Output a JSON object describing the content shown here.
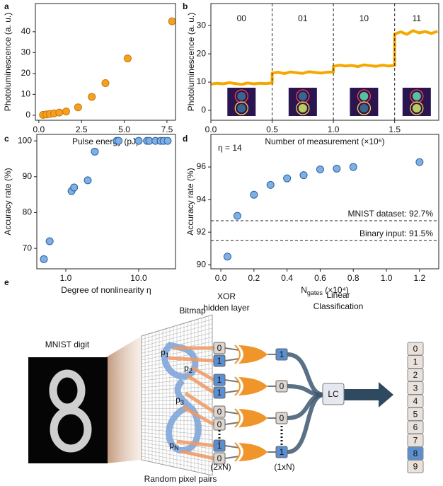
{
  "panel_labels": [
    "a",
    "b",
    "c",
    "d",
    "e"
  ],
  "chart_data": [
    {
      "type": "scatter",
      "x_label": "Pulse energy (pJ)",
      "y_label": "Photoluminescence (a. u.)",
      "x": [
        0.25,
        0.45,
        0.65,
        0.9,
        1.2,
        1.6,
        2.3,
        3.1,
        3.9,
        5.2,
        7.8
      ],
      "values": [
        0.2,
        0.4,
        0.6,
        0.9,
        1.3,
        1.8,
        3.8,
        8.8,
        15.4,
        27.2,
        45
      ],
      "color": "#f5a11f",
      "edgecolor": "#c9780a",
      "xlim": [
        -0.2,
        8.0
      ],
      "xticks": [
        {
          "value": 0,
          "label": "0.0"
        },
        {
          "value": 2.5,
          "label": "2.5"
        },
        {
          "value": 5,
          "label": "5.0"
        },
        {
          "value": 7.5,
          "label": "7.5"
        }
      ],
      "ylim": [
        -2.4,
        53.5
      ],
      "yticks": [
        0,
        10,
        20,
        30,
        40
      ]
    },
    {
      "type": "line",
      "x_label": "Number of measurement (×10⁶)",
      "y_label": "Photoluminescence (a. u.)",
      "x": [
        0,
        0.05,
        0.1,
        0.15,
        0.2,
        0.25,
        0.3,
        0.35,
        0.4,
        0.45,
        0.5,
        0.5,
        0.55,
        0.6,
        0.65,
        0.7,
        0.75,
        0.8,
        0.85,
        0.9,
        0.95,
        1.0,
        1.0,
        1.05,
        1.1,
        1.15,
        1.2,
        1.25,
        1.3,
        1.35,
        1.4,
        1.45,
        1.5,
        1.5,
        1.55,
        1.6,
        1.65,
        1.7,
        1.75,
        1.8,
        1.85
      ],
      "values": [
        9.3,
        9.6,
        9.4,
        9.8,
        9.5,
        9.2,
        9.7,
        9.4,
        9.6,
        9.5,
        9.7,
        13.2,
        13.5,
        13.0,
        13.6,
        13.3,
        13.1,
        13.7,
        13.4,
        13.2,
        13.5,
        13.6,
        15.6,
        16.0,
        15.7,
        15.9,
        15.5,
        16.1,
        15.8,
        15.6,
        16.0,
        15.7,
        15.9,
        27.0,
        27.8,
        26.9,
        28.2,
        27.4,
        27.9,
        27.2,
        28.0
      ],
      "color": "#f5a800",
      "segment_labels": [
        "00",
        "01",
        "10",
        "11"
      ],
      "dividers": [
        0.5,
        1.0,
        1.5
      ],
      "xlim": [
        0,
        1.86
      ],
      "xticks": [
        {
          "value": 0,
          "label": "0.0"
        },
        {
          "value": 0.5,
          "label": "0.5"
        },
        {
          "value": 1,
          "label": "1.0"
        },
        {
          "value": 1.5,
          "label": "1.5"
        }
      ],
      "ylim": [
        -3.5,
        37.8
      ],
      "yticks": [
        0,
        10,
        20,
        30
      ]
    },
    {
      "type": "scatter",
      "x_label": "Degree of nonlinearity η",
      "y_label": "Accuracy rate (%)",
      "xscale": "log",
      "x": [
        0.5,
        0.6,
        1.2,
        1.3,
        2.0,
        2.5,
        5.0,
        5.3,
        10,
        13,
        14,
        17,
        20,
        22,
        25
      ],
      "values": [
        67,
        72,
        86,
        87,
        89,
        97,
        100,
        100,
        100,
        100,
        100,
        100,
        100,
        100,
        100
      ],
      "color": "#7fb0e4",
      "edgecolor": "#2c5f9e",
      "xlim": [
        0.4,
        32
      ],
      "xticks": [
        {
          "value": 1,
          "label": "1.0"
        },
        {
          "value": 10,
          "label": "10.0"
        }
      ],
      "ylim": [
        64.3,
        101.8
      ],
      "yticks": [
        70,
        80,
        90,
        100
      ]
    },
    {
      "type": "scatter",
      "x_label": "N",
      "x_label_sub": "gates",
      "x_label_suffix": " (×10⁴)",
      "y_label": "Accuracy rate (%)",
      "annotation": "η = 14",
      "x": [
        0.04,
        0.1,
        0.2,
        0.3,
        0.4,
        0.5,
        0.6,
        0.7,
        0.8,
        1.2
      ],
      "values": [
        90.5,
        93.0,
        94.3,
        94.9,
        95.3,
        95.5,
        95.85,
        95.9,
        96.0,
        96.3
      ],
      "color": "#7fb0e4",
      "edgecolor": "#2c5f9e",
      "hlines": [
        {
          "value": 92.7,
          "label": "MNIST dataset: 92.7%"
        },
        {
          "value": 91.5,
          "label": "Binary input: 91.5%"
        }
      ],
      "xlim": [
        -0.06,
        1.316
      ],
      "xticks": [
        {
          "value": 0,
          "label": "0.0"
        },
        {
          "value": 0.2,
          "label": "0.2"
        },
        {
          "value": 0.4,
          "label": "0.4"
        },
        {
          "value": 0.6,
          "label": "0.6"
        },
        {
          "value": 0.8,
          "label": "0.8"
        },
        {
          "value": 1,
          "label": "1.0"
        },
        {
          "value": 1.2,
          "label": "1.2"
        }
      ],
      "ylim": [
        89.75,
        98
      ],
      "yticks": [
        90,
        92,
        94,
        96
      ]
    }
  ],
  "diagram": {
    "digit_label": "MNIST digit",
    "bitmap_label": "Bitmap",
    "hidden_label": [
      "XOR",
      "hidden layer"
    ],
    "classifier_label": [
      "Linear",
      "Classification"
    ],
    "pairs_label": "Random pixel pairs",
    "input_size": "(2xN)",
    "hidden_size": "(1xN)",
    "classifier": "LC",
    "pixel_pairs": [
      {
        "base": "p",
        "sub": "1"
      },
      {
        "base": "p",
        "sub": "2"
      },
      {
        "base": "p",
        "sub": "3"
      },
      {
        "base": "p",
        "sub": "N"
      }
    ],
    "inputs": [
      [
        "0",
        "1"
      ],
      [
        "1",
        "1"
      ],
      [
        "0",
        "0"
      ],
      [
        "1",
        "0"
      ]
    ],
    "hidden": [
      "1",
      "0",
      "0",
      "1"
    ],
    "outputs": [
      "0",
      "1",
      "2",
      "3",
      "4",
      "5",
      "6",
      "7",
      "8",
      "9"
    ]
  }
}
